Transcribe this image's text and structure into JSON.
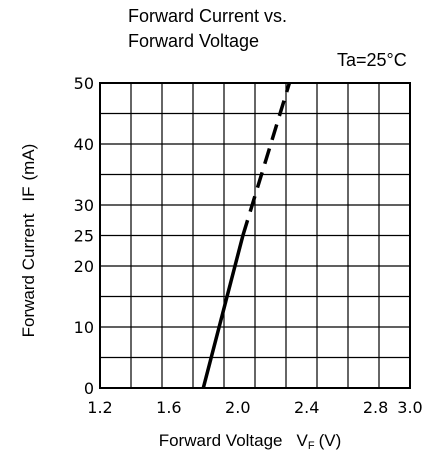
{
  "chart_data": {
    "type": "line",
    "title": "Forward Current vs. Forward Voltage",
    "title_lines": [
      "Forward Current vs.",
      "Forward Voltage"
    ],
    "condition": "Ta=25°C",
    "xlabel": {
      "text": "Forward Voltage",
      "symbol": "V",
      "subscript": "F",
      "unit": "(V)"
    },
    "ylabel": {
      "text": "Forward Current",
      "symbol": "IF",
      "unit": "(mA)"
    },
    "xlim": [
      1.2,
      3.0
    ],
    "ylim": [
      0,
      50
    ],
    "x_ticks": [
      "1.2",
      "1.6",
      "2.0",
      "2.4",
      "2.8",
      "3.0"
    ],
    "y_ticks": [
      "0",
      "10",
      "20",
      "25",
      "30",
      "40",
      "50"
    ],
    "grid": true,
    "series": [
      {
        "style": "solid",
        "color": "#000000",
        "points": [
          {
            "x": 1.8,
            "y": 0
          },
          {
            "x": 2.03,
            "y": 25
          }
        ]
      },
      {
        "style": "dashed",
        "color": "#000000",
        "points": [
          {
            "x": 2.03,
            "y": 25
          },
          {
            "x": 2.3,
            "y": 50
          }
        ]
      }
    ]
  }
}
